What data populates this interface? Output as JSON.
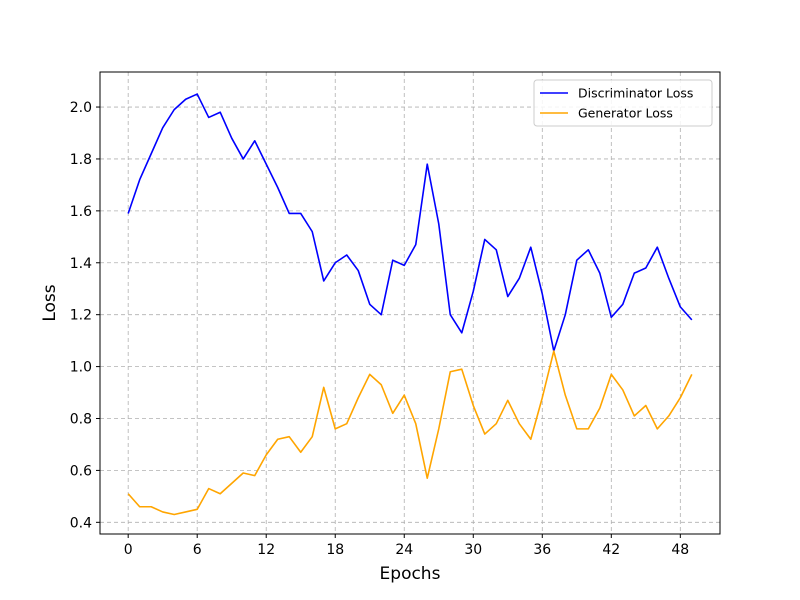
{
  "chart_data": {
    "type": "line",
    "title": "",
    "xlabel": "Epochs",
    "ylabel": "Loss",
    "xlim": [
      -2.45,
      51.45
    ],
    "ylim": [
      0.355,
      2.135
    ],
    "xticks": [
      0,
      6,
      12,
      18,
      24,
      30,
      36,
      42,
      48
    ],
    "yticks": [
      0.4,
      0.6,
      0.8,
      1.0,
      1.2,
      1.4,
      1.6,
      1.8,
      2.0
    ],
    "ytick_labels": [
      "0.4",
      "0.6",
      "0.8",
      "1.0",
      "1.2",
      "1.4",
      "1.6",
      "1.8",
      "2.0"
    ],
    "grid": true,
    "legend_position": "top-right",
    "x": [
      0,
      1,
      2,
      3,
      4,
      5,
      6,
      7,
      8,
      9,
      10,
      11,
      12,
      13,
      14,
      15,
      16,
      17,
      18,
      19,
      20,
      21,
      22,
      23,
      24,
      25,
      26,
      27,
      28,
      29,
      30,
      31,
      32,
      33,
      34,
      35,
      36,
      37,
      38,
      39,
      40,
      41,
      42,
      43,
      44,
      45,
      46,
      47,
      48,
      49
    ],
    "series": [
      {
        "name": "Discriminator Loss",
        "color": "#0000ff",
        "values": [
          1.59,
          1.72,
          1.82,
          1.92,
          1.99,
          2.03,
          2.05,
          1.96,
          1.98,
          1.88,
          1.8,
          1.87,
          1.78,
          1.69,
          1.59,
          1.59,
          1.52,
          1.33,
          1.4,
          1.43,
          1.37,
          1.24,
          1.2,
          1.41,
          1.39,
          1.47,
          1.78,
          1.55,
          1.2,
          1.13,
          1.29,
          1.49,
          1.45,
          1.27,
          1.34,
          1.46,
          1.28,
          1.06,
          1.2,
          1.41,
          1.45,
          1.36,
          1.19,
          1.24,
          1.36,
          1.38,
          1.46,
          1.34,
          1.23,
          1.18
        ]
      },
      {
        "name": "Generator Loss",
        "color": "#ffa500",
        "values": [
          0.51,
          0.46,
          0.46,
          0.44,
          0.43,
          0.44,
          0.45,
          0.53,
          0.51,
          0.55,
          0.59,
          0.58,
          0.66,
          0.72,
          0.73,
          0.67,
          0.73,
          0.92,
          0.76,
          0.78,
          0.88,
          0.97,
          0.93,
          0.82,
          0.89,
          0.78,
          0.57,
          0.76,
          0.98,
          0.99,
          0.85,
          0.74,
          0.78,
          0.87,
          0.78,
          0.72,
          0.88,
          1.06,
          0.89,
          0.76,
          0.76,
          0.84,
          0.97,
          0.91,
          0.81,
          0.85,
          0.76,
          0.81,
          0.88,
          0.97
        ]
      }
    ]
  }
}
